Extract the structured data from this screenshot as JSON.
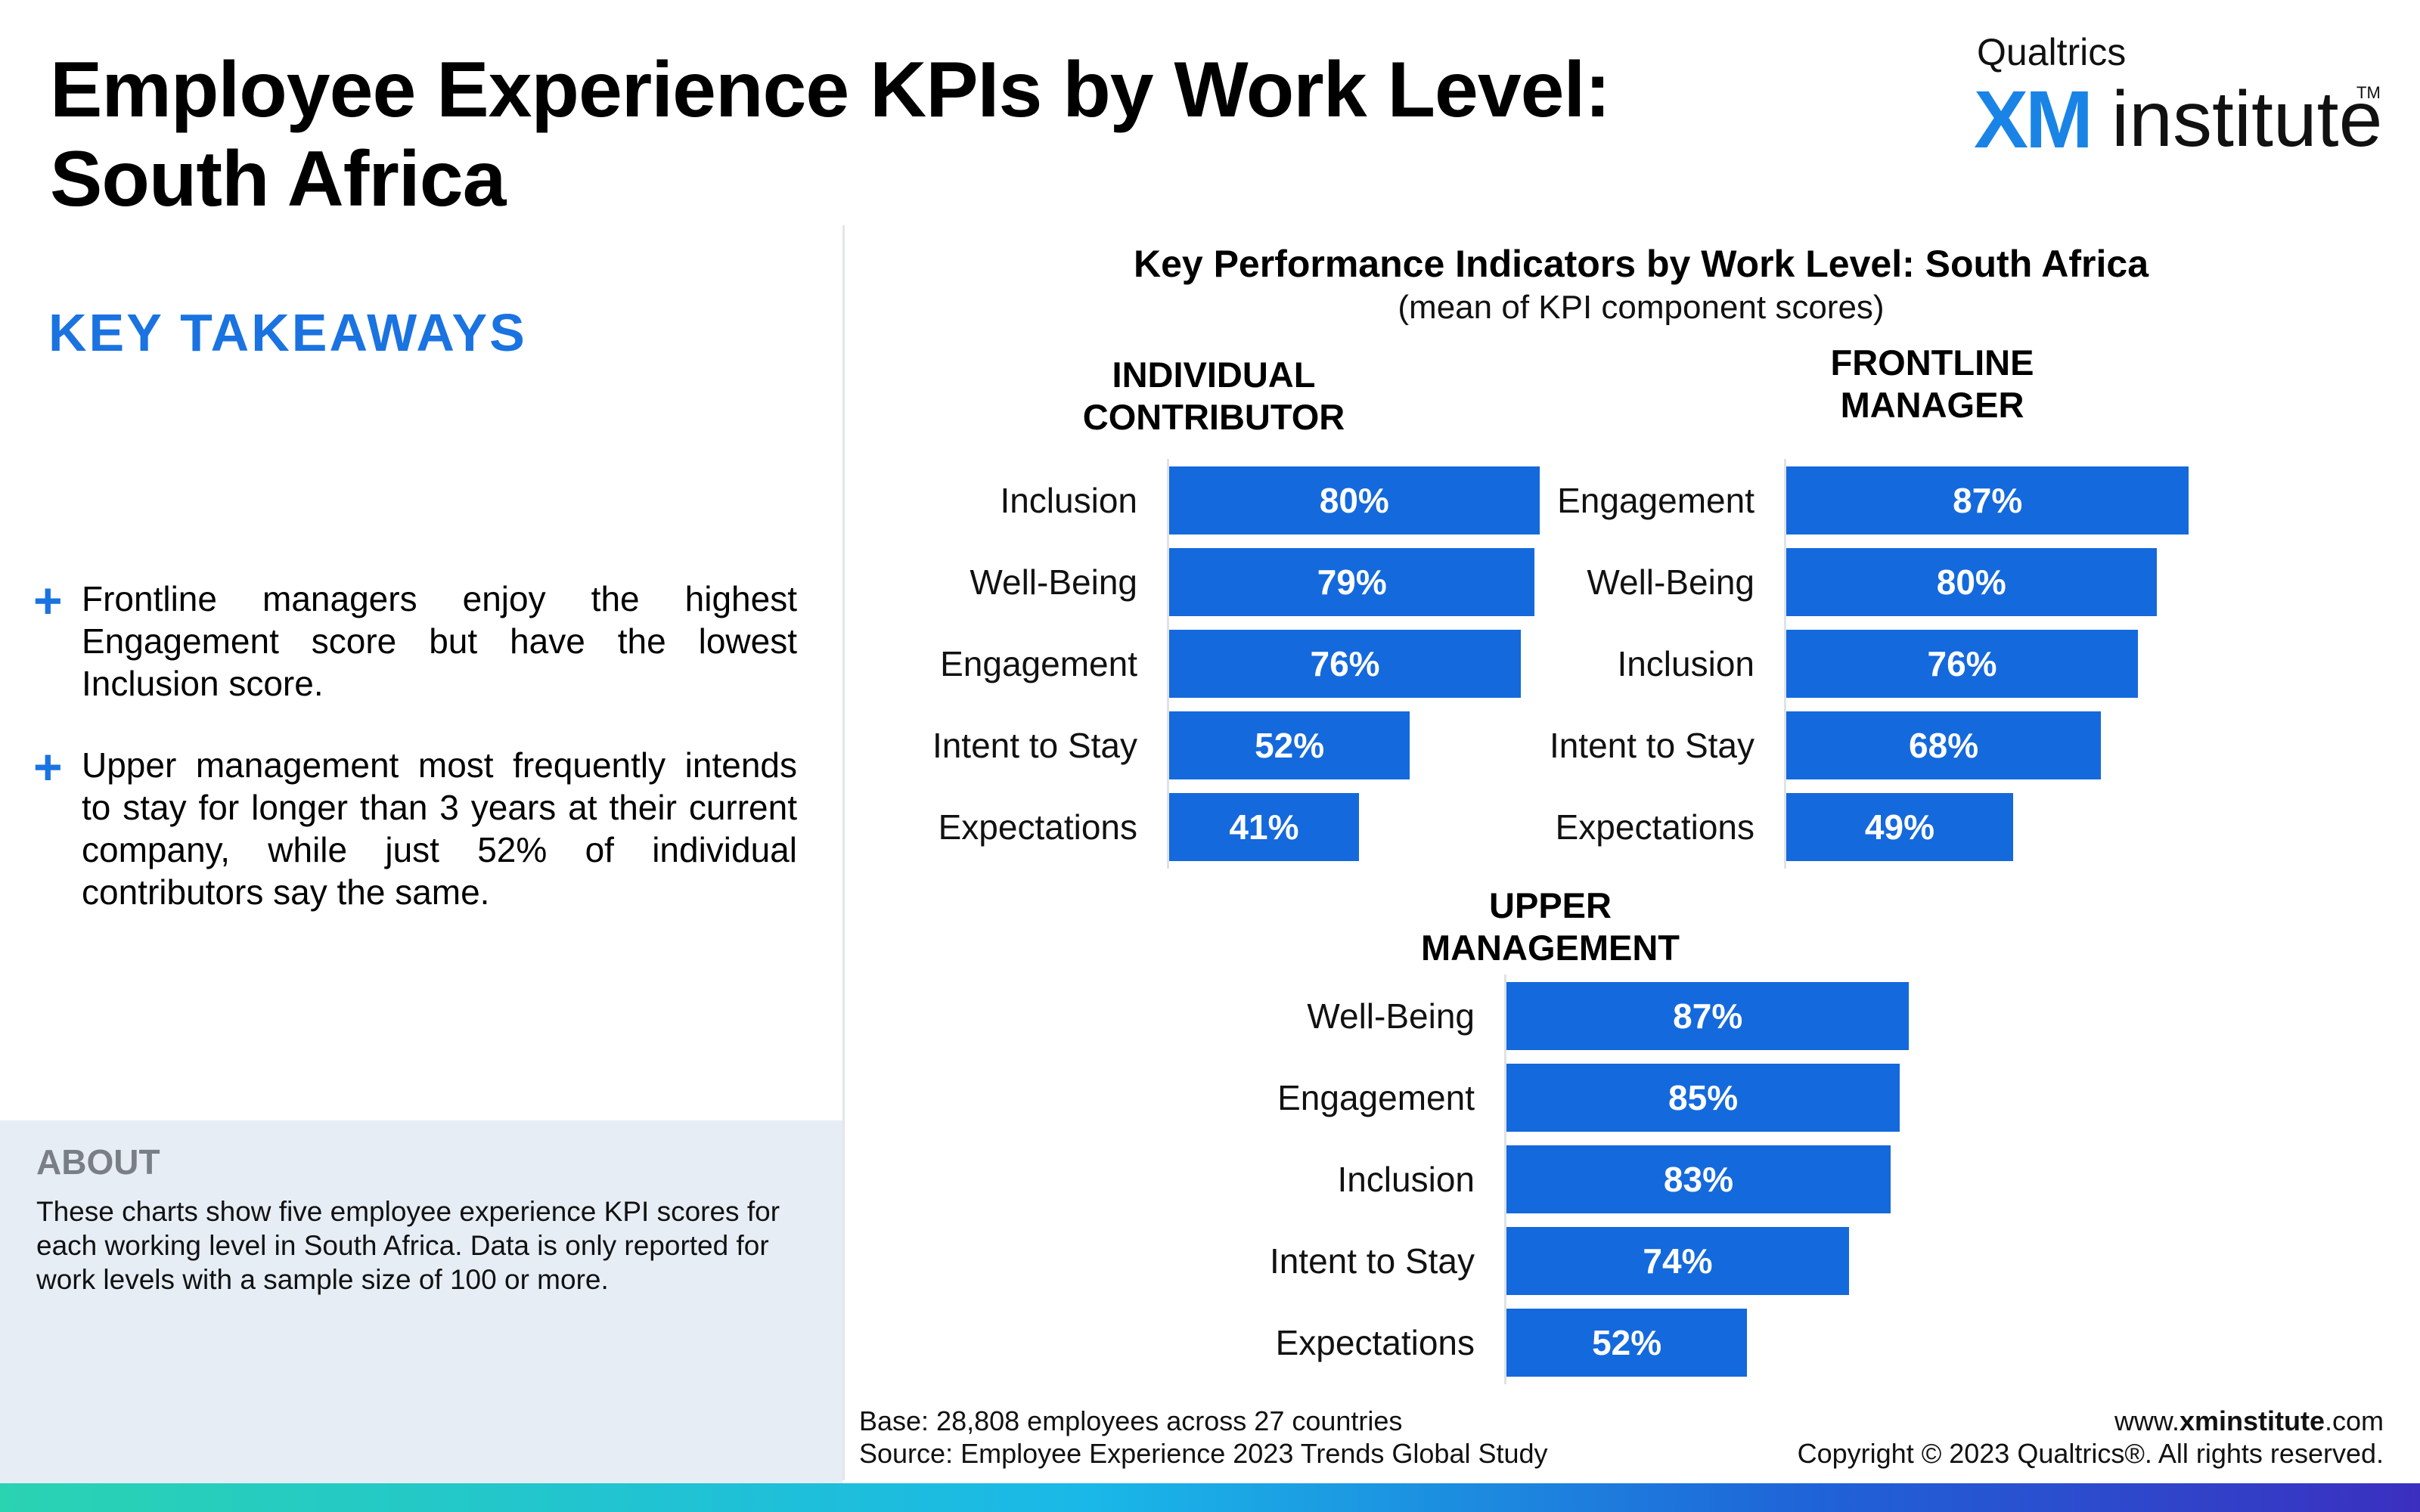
{
  "header": {
    "title_line1": "Employee Experience KPIs by Work Level:",
    "title_line2": "South Africa"
  },
  "logo": {
    "top": "Qualtrics",
    "xm": "XM",
    "institute": "institute",
    "tm": "TM"
  },
  "takeaways": {
    "heading": "KEY TAKEAWAYS",
    "plus": "+",
    "items": [
      "Frontline managers enjoy the highest Engagement score but have the lowest Inclusion score.",
      "Upper management most frequently intends to stay for longer than 3 years at their current company, while just 52% of individual contributors say the same."
    ]
  },
  "about": {
    "title": "ABOUT",
    "text": "These charts show five employee experience KPI scores for each working level in South Africa. Data is only reported for work levels with a sample size of 100 or more."
  },
  "colors": {
    "bar": "#1469dd",
    "accent": "#1a73e0"
  },
  "chart_data": {
    "type": "bar",
    "orientation": "horizontal",
    "title": "Key Performance Indicators by Work Level: South Africa",
    "subtitle": "(mean of KPI component scores)",
    "value_format": "percent",
    "xlim": [
      0,
      100
    ],
    "grid": false,
    "panels": [
      {
        "title_lines": [
          "INDIVIDUAL",
          "CONTRIBUTOR"
        ],
        "categories": [
          "Inclusion",
          "Well-Being",
          "Engagement",
          "Intent to Stay",
          "Expectations"
        ],
        "values": [
          80,
          79,
          76,
          52,
          41
        ],
        "labels": [
          "80%",
          "79%",
          "76%",
          "52%",
          "41%"
        ]
      },
      {
        "title_lines": [
          "FRONTLINE",
          "MANAGER"
        ],
        "categories": [
          "Engagement",
          "Well-Being",
          "Inclusion",
          "Intent to Stay",
          "Expectations"
        ],
        "values": [
          87,
          80,
          76,
          68,
          49
        ],
        "labels": [
          "87%",
          "80%",
          "76%",
          "68%",
          "49%"
        ]
      },
      {
        "title_lines": [
          "UPPER",
          "MANAGEMENT"
        ],
        "categories": [
          "Well-Being",
          "Engagement",
          "Inclusion",
          "Intent to Stay",
          "Expectations"
        ],
        "values": [
          87,
          85,
          83,
          74,
          52
        ],
        "labels": [
          "87%",
          "85%",
          "83%",
          "74%",
          "52%"
        ]
      }
    ]
  },
  "footer": {
    "base": "Base: 28,808 employees across 27 countries",
    "source": "Source: Employee Experience 2023 Trends Global Study",
    "url_prefix": "www.",
    "url_bold": "xminstitute",
    "url_suffix": ".com",
    "copyright": "Copyright © 2023 Qualtrics®. All rights reserved."
  }
}
